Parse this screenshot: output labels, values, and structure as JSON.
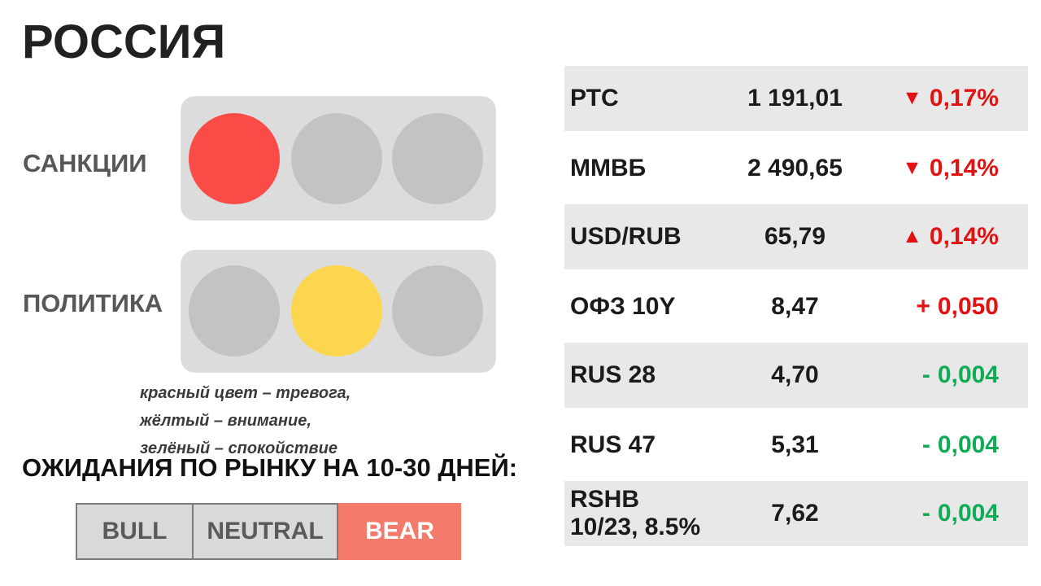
{
  "page": {
    "title": "РОССИЯ"
  },
  "colors": {
    "red_lamp": "#fa4b47",
    "yellow_lamp": "#fcd64e",
    "off_lamp": "#c3c3c3",
    "lamp_box": "#dcdcdc",
    "row_shade": "#e8e8e8",
    "red_text": "#e31212",
    "green_text": "#10ac55",
    "bear_bg": "#f47a6c",
    "bear_text": "#ffffff",
    "option_bg": "#d9d9d9",
    "option_text": "#5a5a5a"
  },
  "traffic": {
    "sanctions": {
      "label": "САНКЦИИ",
      "active": "red",
      "lamps": [
        {
          "slot": "red",
          "state": "on",
          "color": "#fa4b47"
        },
        {
          "slot": "yellow",
          "state": "off",
          "color": "#c3c3c3"
        },
        {
          "slot": "green",
          "state": "off",
          "color": "#c3c3c3"
        }
      ]
    },
    "politics": {
      "label": "ПОЛИТИКА",
      "active": "yellow",
      "lamps": [
        {
          "slot": "red",
          "state": "off",
          "color": "#c3c3c3"
        },
        {
          "slot": "yellow",
          "state": "on",
          "color": "#fcd64e"
        },
        {
          "slot": "green",
          "state": "off",
          "color": "#c3c3c3"
        }
      ]
    },
    "legend": {
      "line1": "красный цвет  – тревога,",
      "line2": "жёлтый – внимание,",
      "line3": "зелёный – спокойствие"
    }
  },
  "expectations": {
    "heading": "ОЖИДАНИЯ ПО РЫНКУ НА 10-30 ДНЕЙ:",
    "selected": "BEAR",
    "options": [
      {
        "label": "BULL",
        "selected": false
      },
      {
        "label": "NEUTRAL",
        "selected": false
      },
      {
        "label": "BEAR",
        "selected": true
      }
    ]
  },
  "table": {
    "rows": [
      {
        "name": "РТС",
        "value": "1 191,01",
        "change_icon": "▼",
        "change_value": "0,17%",
        "direction": "down",
        "change_color": "#e31212",
        "shaded": true
      },
      {
        "name": "ММВБ",
        "value": "2 490,65",
        "change_icon": "▼",
        "change_value": "0,14%",
        "direction": "down",
        "change_color": "#e31212",
        "shaded": false
      },
      {
        "name": "USD/RUB",
        "value": "65,79",
        "change_icon": "▲",
        "change_value": "0,14%",
        "direction": "up",
        "change_color": "#e31212",
        "shaded": true
      },
      {
        "name": "ОФЗ 10Y",
        "value": "8,47",
        "change_icon": "+",
        "change_value": "0,050",
        "direction": "up",
        "change_color": "#e31212",
        "shaded": false
      },
      {
        "name": "RUS 28",
        "value": "4,70",
        "change_icon": "-",
        "change_value": "0,004",
        "direction": "down",
        "change_color": "#10ac55",
        "shaded": true
      },
      {
        "name": "RUS 47",
        "value": "5,31",
        "change_icon": "-",
        "change_value": "0,004",
        "direction": "down",
        "change_color": "#10ac55",
        "shaded": false
      },
      {
        "name": "RSHB\n10/23, 8.5%",
        "value": "7,62",
        "change_icon": "-",
        "change_value": "0,004",
        "direction": "down",
        "change_color": "#10ac55",
        "shaded": true
      }
    ]
  }
}
